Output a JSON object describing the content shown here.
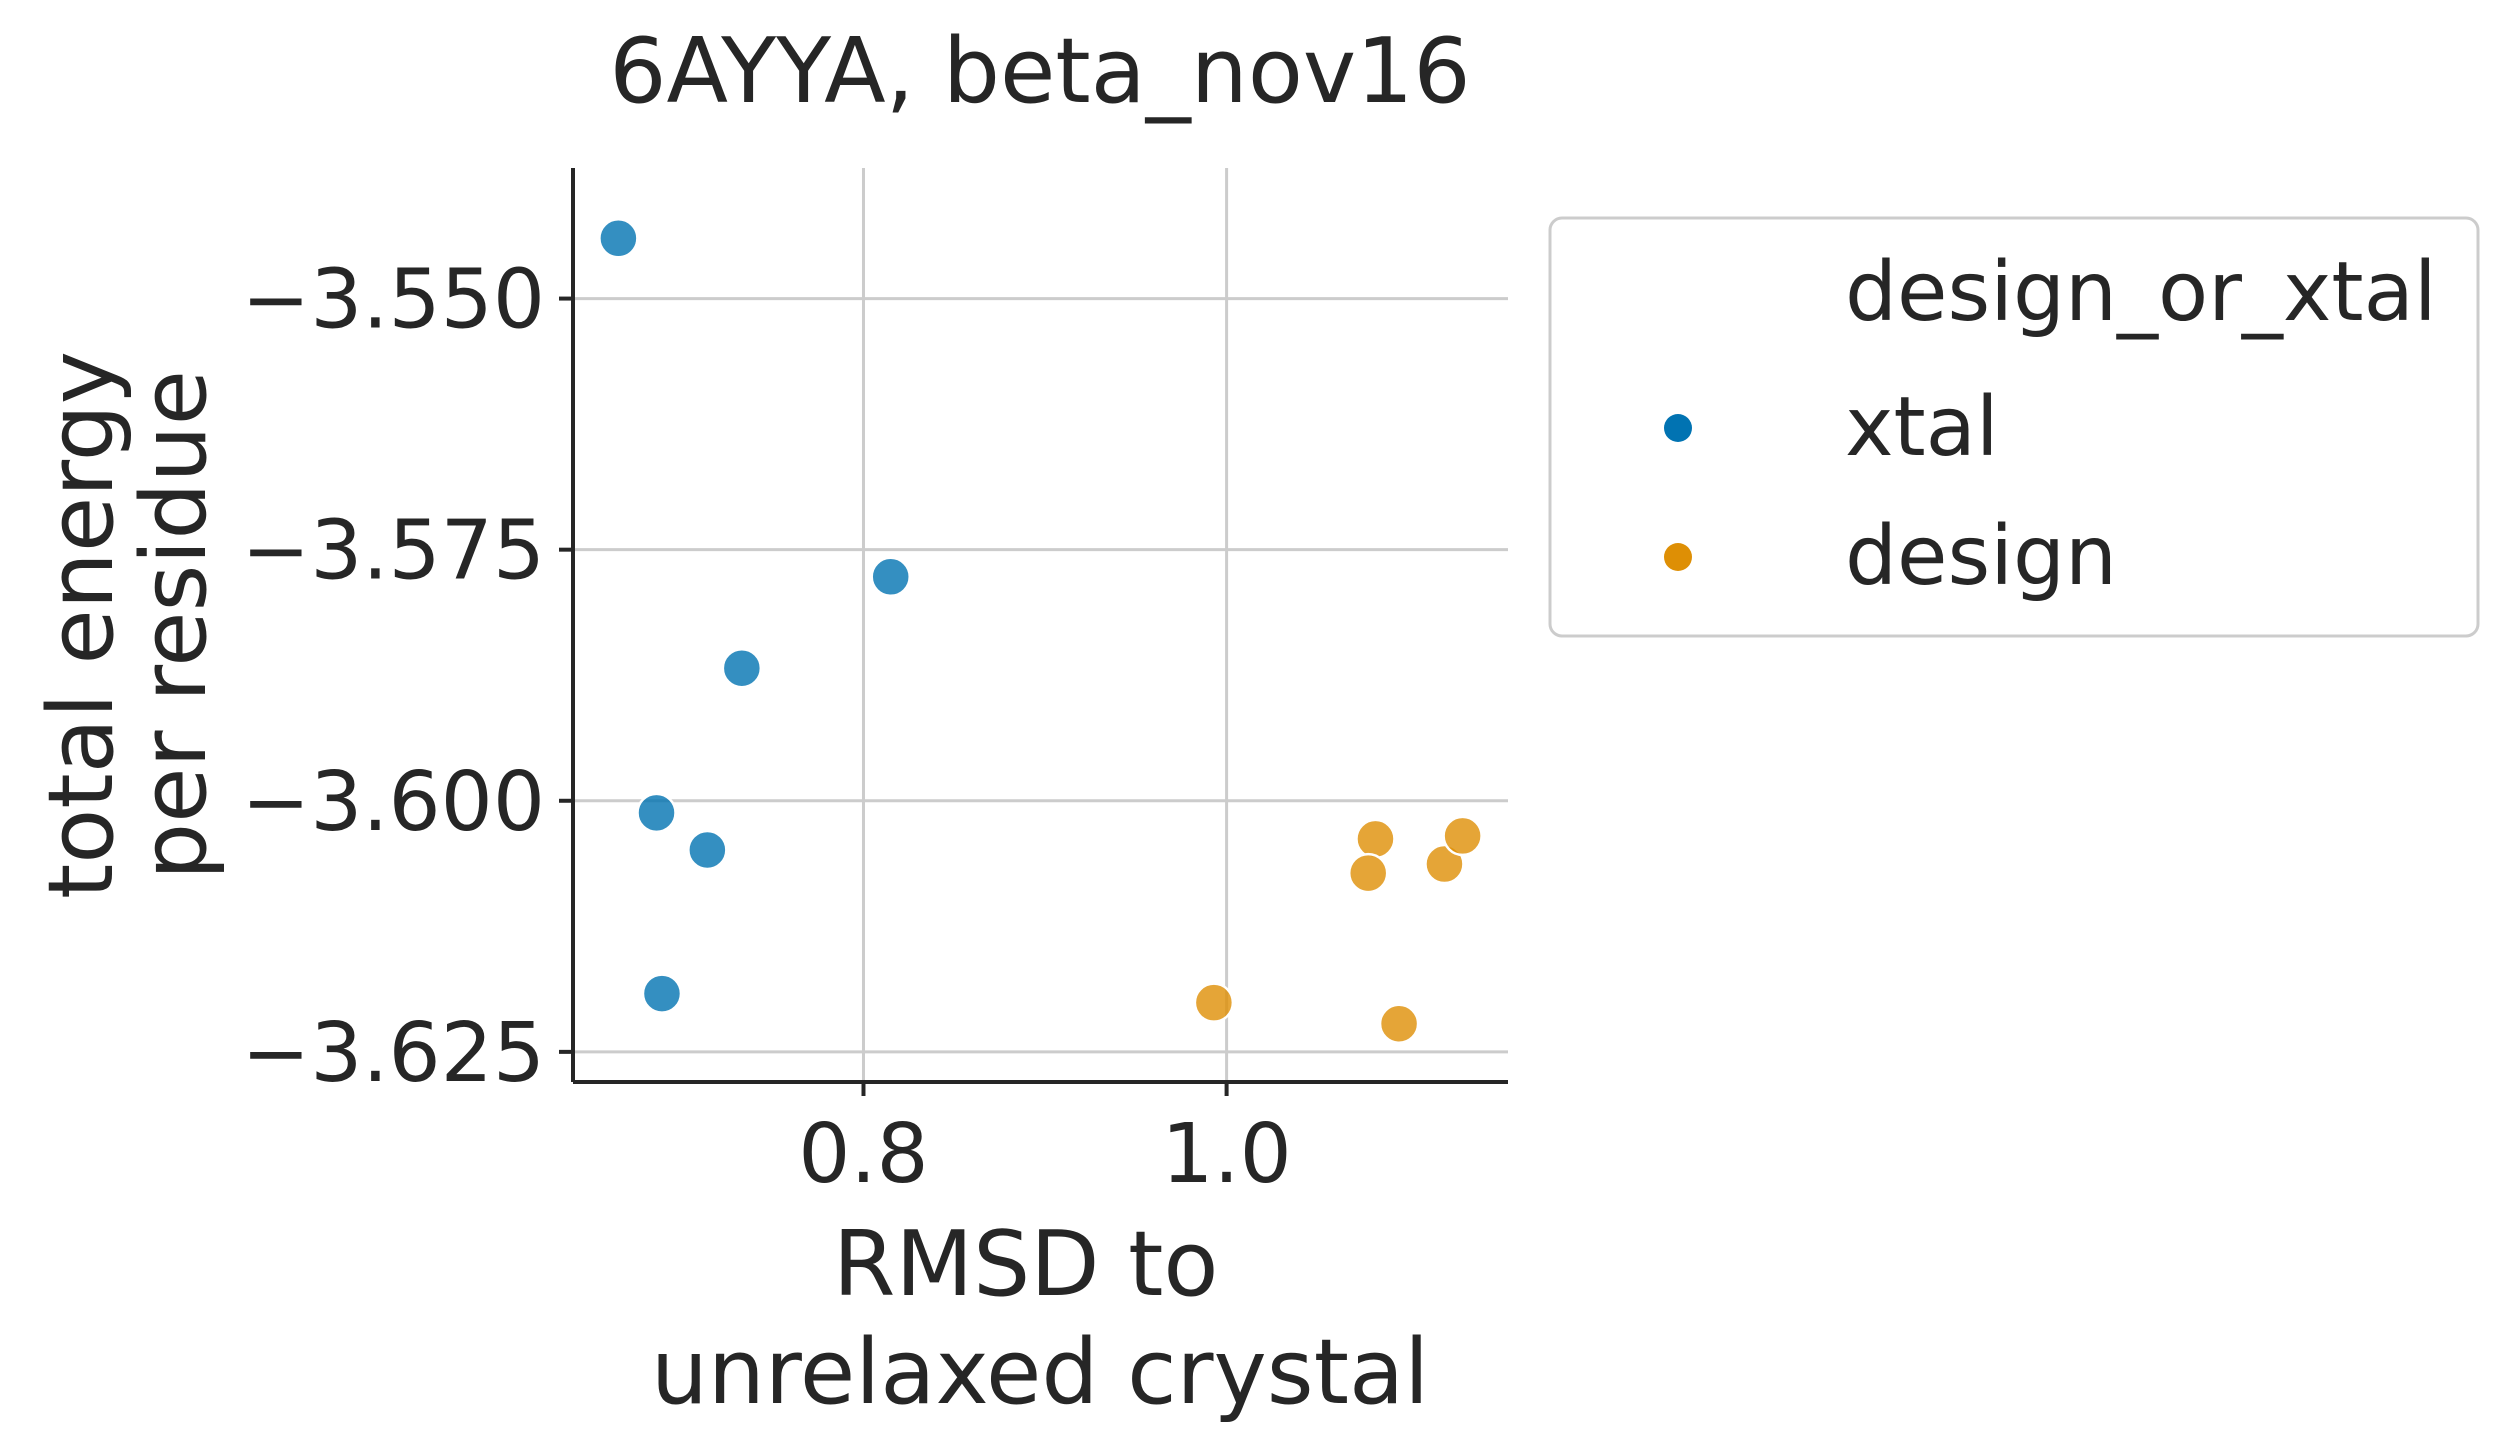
{
  "chart_data": {
    "type": "scatter",
    "title": "6AYYA, beta_nov16",
    "xlabel": [
      "RMSD to",
      "unrelaxed crystal"
    ],
    "ylabel": [
      "total energy",
      "per residue"
    ],
    "xlim": [
      0.64,
      1.155
    ],
    "ylim": [
      -3.628,
      -3.537
    ],
    "xticks": [
      0.8,
      1.0
    ],
    "xtick_labels": [
      "0.8",
      "1.0"
    ],
    "yticks": [
      -3.55,
      -3.575,
      -3.6,
      -3.625
    ],
    "ytick_labels": [
      "−3.550",
      "−3.575",
      "−3.600",
      "−3.625"
    ],
    "grid": true,
    "legend": {
      "title": "design_or_xtal",
      "placement": "outside-right",
      "entries": [
        "xtal",
        "design"
      ]
    },
    "series": [
      {
        "name": "xtal",
        "color": "#0173b2",
        "points": [
          {
            "x": 0.665,
            "y": -3.544
          },
          {
            "x": 0.815,
            "y": -3.5777
          },
          {
            "x": 0.733,
            "y": -3.5868
          },
          {
            "x": 0.686,
            "y": -3.6012
          },
          {
            "x": 0.714,
            "y": -3.6049
          },
          {
            "x": 0.689,
            "y": -3.6192
          }
        ]
      },
      {
        "name": "design",
        "color": "#de8f05",
        "points": [
          {
            "x": 0.993,
            "y": -3.6201
          },
          {
            "x": 1.095,
            "y": -3.6222
          },
          {
            "x": 1.082,
            "y": -3.6038
          },
          {
            "x": 1.078,
            "y": -3.6072
          },
          {
            "x": 1.12,
            "y": -3.6063
          },
          {
            "x": 1.13,
            "y": -3.6035
          }
        ]
      }
    ]
  }
}
